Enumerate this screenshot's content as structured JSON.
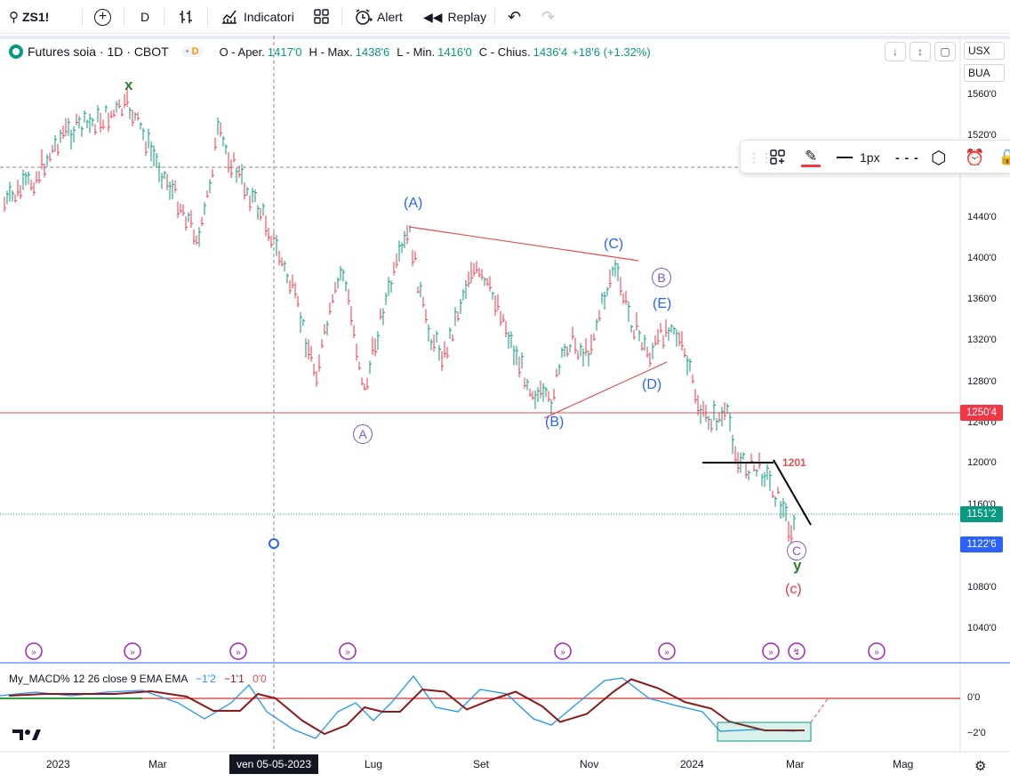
{
  "toolbar": {
    "symbol": "ZS1!",
    "interval": "D",
    "indicators_label": "Indicatori",
    "alert_label": "Alert",
    "replay_label": "Replay"
  },
  "legend": {
    "title": "Futures soia · 1D · CBOT",
    "badge": "D",
    "open_key": "O - Aper.",
    "open_val": "1417'0",
    "high_key": "H - Max.",
    "high_val": "1438'6",
    "low_key": "L - Min.",
    "low_val": "1416'0",
    "close_key": "C - Chius.",
    "close_val": "1436'4",
    "change": "+18'6 (+1.32%)"
  },
  "right_controls": {
    "currency": "USX",
    "unit": "BUA"
  },
  "drawbar": {
    "width_label": "1px"
  },
  "price_axis": {
    "ticks": [
      "1560'0",
      "1520'0",
      "1440'0",
      "1400'0",
      "1360'0",
      "1320'0",
      "1280'0",
      "1240'0",
      "1200'0",
      "1160'0",
      "1080'0",
      "1040'0"
    ],
    "tag_red": "1250'4",
    "tag_green": "1151'2",
    "tag_blue": "1122'6"
  },
  "time_axis": {
    "labels": [
      "2023",
      "Mar",
      "Lug",
      "Set",
      "Nov",
      "2024",
      "Mar",
      "Mag"
    ],
    "crosshair_label": "ven 05-05-2023"
  },
  "wave_labels": {
    "x": "x",
    "A_paren": "(A)",
    "B_paren": "(B)",
    "C_paren": "(C)",
    "D_paren": "(D)",
    "E_paren": "(E)",
    "A_circle": "A",
    "B_circle": "B",
    "C_circle": "C",
    "y": "y",
    "c_paren": "(c)",
    "level_1201": "1201"
  },
  "macd": {
    "label": "My_MACD% 12 26 close 9 EMA EMA",
    "v1": "−1'2",
    "v2": "−1'1",
    "v3": "0'0",
    "tick_zero": "0'0",
    "tick_minus2": "−2'0"
  },
  "colors": {
    "up": "#089981",
    "down": "#f23645",
    "wave_blue": "#2962ff",
    "wave_purple": "#7e57c2",
    "wave_green": "#2e7d32",
    "macd_line": "#2196f3",
    "signal_line": "#8b1a1a",
    "level_red": "#e05050"
  }
}
